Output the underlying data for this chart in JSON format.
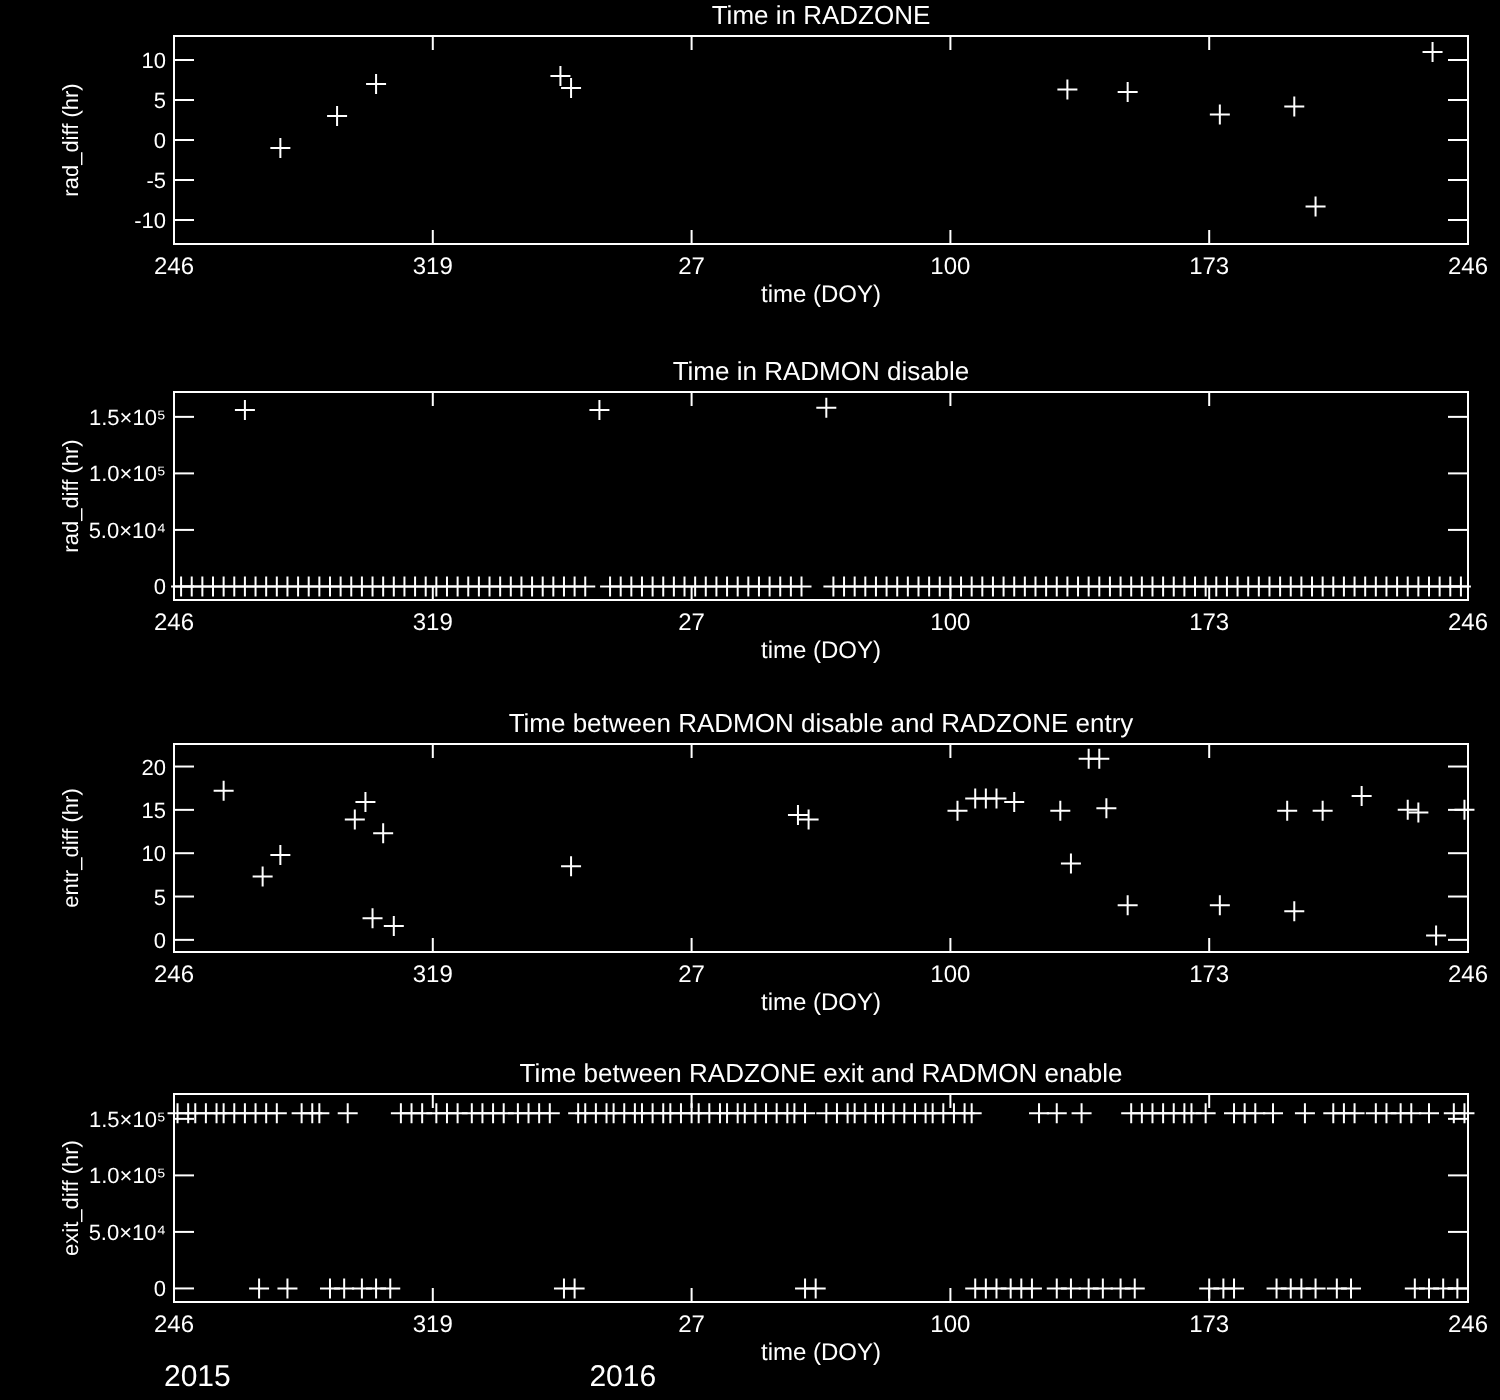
{
  "chart_data": [
    {
      "type": "scatter",
      "title": "Time in RADZONE",
      "xlabel": "time (DOY)",
      "ylabel": "rad_diff (hr)",
      "color": "#ffffff",
      "marker": "cross",
      "x": [
        "2015-10-03",
        "2015-10-19",
        "2015-10-30",
        "2015-12-21",
        "2015-12-24",
        "2016-05-12",
        "2016-05-29",
        "2016-06-24",
        "2016-07-15",
        "2016-07-21",
        "2016-08-23"
      ],
      "values": [
        -1,
        3,
        7,
        8,
        6.5,
        6.3,
        6,
        3.2,
        4.2,
        -8.3,
        11
      ],
      "xlim": [
        "2015-09-03",
        "2016-09-02"
      ],
      "xticks": [
        {
          "value": "2015-09-03",
          "label": "246"
        },
        {
          "value": "2015-11-15",
          "label": "319"
        },
        {
          "value": "2016-01-27",
          "label": "27"
        },
        {
          "value": "2016-04-09",
          "label": "100"
        },
        {
          "value": "2016-06-21",
          "label": "173"
        },
        {
          "value": "2016-09-02",
          "label": "246"
        }
      ],
      "ylim": [
        -13,
        13
      ],
      "yticks": [
        -10,
        -5,
        0,
        5,
        10
      ]
    },
    {
      "type": "scatter",
      "title": "Time in RADMON disable",
      "xlabel": "time (DOY)",
      "ylabel": "rad_diff (hr)",
      "color": "#ffffff",
      "marker": "cross",
      "x": [
        "2015-09-23",
        "2016-01-01",
        "2016-03-05",
        "2015-09-05",
        "2015-09-08",
        "2015-09-11",
        "2015-09-14",
        "2015-09-17",
        "2015-09-20",
        "2015-09-23",
        "2015-09-26",
        "2015-09-29",
        "2015-10-02",
        "2015-10-05",
        "2015-10-08",
        "2015-10-11",
        "2015-10-14",
        "2015-10-17",
        "2015-10-20",
        "2015-10-23",
        "2015-10-26",
        "2015-10-29",
        "2015-11-01",
        "2015-11-04",
        "2015-11-07",
        "2015-11-10",
        "2015-11-13",
        "2015-11-16",
        "2015-11-19",
        "2015-11-22",
        "2015-11-25",
        "2015-11-28",
        "2015-12-01",
        "2015-12-04",
        "2015-12-07",
        "2015-12-10",
        "2015-12-13",
        "2015-12-16",
        "2015-12-19",
        "2015-12-22",
        "2015-12-25",
        "2015-12-28",
        "2016-01-04",
        "2016-01-07",
        "2016-01-10",
        "2016-01-13",
        "2016-01-16",
        "2016-01-19",
        "2016-01-22",
        "2016-01-25",
        "2016-01-28",
        "2016-01-31",
        "2016-02-03",
        "2016-02-06",
        "2016-02-09",
        "2016-02-12",
        "2016-02-15",
        "2016-02-18",
        "2016-02-21",
        "2016-02-24",
        "2016-02-27",
        "2016-03-07",
        "2016-03-10",
        "2016-03-13",
        "2016-03-16",
        "2016-03-19",
        "2016-03-22",
        "2016-03-25",
        "2016-03-28",
        "2016-03-31",
        "2016-04-03",
        "2016-04-06",
        "2016-04-09",
        "2016-04-12",
        "2016-04-15",
        "2016-04-18",
        "2016-04-21",
        "2016-04-24",
        "2016-04-27",
        "2016-04-30",
        "2016-05-03",
        "2016-05-06",
        "2016-05-09",
        "2016-05-12",
        "2016-05-15",
        "2016-05-18",
        "2016-05-21",
        "2016-05-24",
        "2016-05-27",
        "2016-05-30",
        "2016-06-02",
        "2016-06-05",
        "2016-06-08",
        "2016-06-11",
        "2016-06-14",
        "2016-06-17",
        "2016-06-20",
        "2016-06-23",
        "2016-06-26",
        "2016-06-29",
        "2016-07-02",
        "2016-07-05",
        "2016-07-08",
        "2016-07-11",
        "2016-07-14",
        "2016-07-17",
        "2016-07-20",
        "2016-07-23",
        "2016-07-26",
        "2016-07-29",
        "2016-08-01",
        "2016-08-04",
        "2016-08-07",
        "2016-08-10",
        "2016-08-13",
        "2016-08-16",
        "2016-08-19",
        "2016-08-22",
        "2016-08-25",
        "2016-08-28",
        "2016-08-31"
      ],
      "values": [
        156000,
        156000,
        158000,
        0,
        0,
        0,
        0,
        0,
        0,
        0,
        0,
        0,
        0,
        0,
        0,
        0,
        0,
        0,
        0,
        0,
        0,
        0,
        0,
        0,
        0,
        0,
        0,
        0,
        0,
        0,
        0,
        0,
        0,
        0,
        0,
        0,
        0,
        0,
        0,
        0,
        0,
        0,
        0,
        0,
        0,
        0,
        0,
        0,
        0,
        0,
        0,
        0,
        0,
        0,
        0,
        0,
        0,
        0,
        0,
        0,
        0,
        0,
        0,
        0,
        0,
        0,
        0,
        0,
        0,
        0,
        0,
        0,
        0,
        0,
        0,
        0,
        0,
        0,
        0,
        0,
        0,
        0,
        0,
        0,
        0,
        0,
        0,
        0,
        0,
        0,
        0,
        0,
        0,
        0,
        0,
        0,
        0,
        0,
        0,
        0,
        0,
        0,
        0,
        0,
        0,
        0,
        0,
        0,
        0,
        0,
        0,
        0,
        0,
        0,
        0,
        0,
        0,
        0,
        0,
        0,
        0
      ],
      "xlim": [
        "2015-09-03",
        "2016-09-02"
      ],
      "xticks": [
        {
          "value": "2015-09-03",
          "label": "246"
        },
        {
          "value": "2015-11-15",
          "label": "319"
        },
        {
          "value": "2016-01-27",
          "label": "27"
        },
        {
          "value": "2016-04-09",
          "label": "100"
        },
        {
          "value": "2016-06-21",
          "label": "173"
        },
        {
          "value": "2016-09-02",
          "label": "246"
        }
      ],
      "ylim": [
        -12000,
        172000
      ],
      "yticks": [
        0,
        {
          "value": 50000,
          "label": "5.0×10⁴"
        },
        {
          "value": 100000,
          "label": "1.0×10⁵"
        },
        {
          "value": 150000,
          "label": "1.5×10⁵"
        }
      ]
    },
    {
      "type": "scatter",
      "title": "Time between RADMON disable and RADZONE entry",
      "xlabel": "time (DOY)",
      "ylabel": "entr_diff (hr)",
      "color": "#ffffff",
      "marker": "cross",
      "x": [
        "2015-09-17",
        "2015-09-28",
        "2015-10-03",
        "2015-10-24",
        "2015-10-27",
        "2015-10-29",
        "2015-11-01",
        "2015-11-04",
        "2015-12-24",
        "2016-02-26",
        "2016-02-29",
        "2016-04-11",
        "2016-04-16",
        "2016-04-19",
        "2016-04-22",
        "2016-04-27",
        "2016-05-10",
        "2016-05-13",
        "2016-05-18",
        "2016-05-21",
        "2016-05-23",
        "2016-05-29",
        "2016-06-24",
        "2016-07-13",
        "2016-07-15",
        "2016-07-23",
        "2016-08-03",
        "2016-08-16",
        "2016-08-19",
        "2016-08-24",
        "2016-09-01"
      ],
      "values": [
        17.2,
        7.3,
        9.8,
        13.9,
        15.9,
        2.5,
        12.3,
        1.6,
        8.5,
        14.4,
        13.9,
        14.9,
        16.3,
        16.3,
        16.3,
        15.9,
        14.9,
        8.8,
        20.9,
        20.9,
        15.2,
        4,
        4,
        14.9,
        3.3,
        14.9,
        16.6,
        15,
        14.7,
        0.5,
        15
      ],
      "xlim": [
        "2015-09-03",
        "2016-09-02"
      ],
      "xticks": [
        {
          "value": "2015-09-03",
          "label": "246"
        },
        {
          "value": "2015-11-15",
          "label": "319"
        },
        {
          "value": "2016-01-27",
          "label": "27"
        },
        {
          "value": "2016-04-09",
          "label": "100"
        },
        {
          "value": "2016-06-21",
          "label": "173"
        },
        {
          "value": "2016-09-02",
          "label": "246"
        }
      ],
      "ylim": [
        -1.4,
        22.6
      ],
      "yticks": [
        0,
        5,
        10,
        15,
        20
      ]
    },
    {
      "type": "scatter",
      "title": "Time between RADZONE exit and RADMON enable",
      "xlabel": "time (DOY)",
      "ylabel": "exit_diff (hr)",
      "color": "#ffffff",
      "marker": "cross",
      "x": [
        "2015-09-04",
        "2015-09-07",
        "2015-09-09",
        "2015-09-12",
        "2015-09-15",
        "2015-09-17",
        "2015-09-20",
        "2015-09-23",
        "2015-09-26",
        "2015-09-29",
        "2015-10-02",
        "2015-10-09",
        "2015-10-12",
        "2015-10-14",
        "2015-10-22",
        "2015-11-06",
        "2015-11-09",
        "2015-11-12",
        "2015-11-16",
        "2015-11-19",
        "2015-11-22",
        "2015-11-26",
        "2015-11-29",
        "2015-12-02",
        "2015-12-05",
        "2015-12-09",
        "2015-12-12",
        "2015-12-15",
        "2015-12-18",
        "2015-12-26",
        "2015-12-28",
        "2015-12-31",
        "2016-01-03",
        "2016-01-05",
        "2016-01-08",
        "2016-01-11",
        "2016-01-13",
        "2016-01-16",
        "2016-01-19",
        "2016-01-21",
        "2016-01-24",
        "2016-01-27",
        "2016-01-29",
        "2016-02-01",
        "2016-02-04",
        "2016-02-06",
        "2016-02-09",
        "2016-02-11",
        "2016-02-14",
        "2016-02-17",
        "2016-02-20",
        "2016-02-23",
        "2016-02-25",
        "2016-02-28",
        "2016-03-05",
        "2016-03-08",
        "2016-03-11",
        "2016-03-13",
        "2016-03-16",
        "2016-03-19",
        "2016-03-21",
        "2016-03-24",
        "2016-03-27",
        "2016-03-30",
        "2016-04-02",
        "2016-04-04",
        "2016-04-07",
        "2016-04-10",
        "2016-04-13",
        "2016-04-15",
        "2016-05-04",
        "2016-05-09",
        "2016-05-16",
        "2016-05-30",
        "2016-06-02",
        "2016-06-05",
        "2016-06-08",
        "2016-06-11",
        "2016-06-14",
        "2016-06-16",
        "2016-06-20",
        "2016-06-28",
        "2016-07-01",
        "2016-07-04",
        "2016-07-09",
        "2016-07-18",
        "2016-07-26",
        "2016-07-29",
        "2016-08-01",
        "2016-08-07",
        "2016-08-10",
        "2016-08-14",
        "2016-08-17",
        "2016-08-22",
        "2016-08-29",
        "2016-09-01",
        "2015-09-27",
        "2015-10-05",
        "2015-10-17",
        "2015-10-21",
        "2015-10-26",
        "2015-10-30",
        "2015-11-03",
        "2015-12-22",
        "2015-12-25",
        "2016-02-28",
        "2016-03-02",
        "2016-04-16",
        "2016-04-19",
        "2016-04-22",
        "2016-04-26",
        "2016-04-29",
        "2016-05-02",
        "2016-05-09",
        "2016-05-13",
        "2016-05-18",
        "2016-05-22",
        "2016-05-27",
        "2016-05-31",
        "2016-06-21",
        "2016-06-25",
        "2016-06-28",
        "2016-07-10",
        "2016-07-14",
        "2016-07-17",
        "2016-07-21",
        "2016-07-27",
        "2016-07-31",
        "2016-08-18",
        "2016-08-22",
        "2016-08-26",
        "2016-08-30"
      ],
      "values": [
        155000,
        155000,
        155000,
        155000,
        155000,
        155000,
        155000,
        155000,
        155000,
        155000,
        155000,
        155000,
        155000,
        155000,
        155000,
        155000,
        155000,
        155000,
        155000,
        155000,
        155000,
        155000,
        155000,
        155000,
        155000,
        155000,
        155000,
        155000,
        155000,
        155000,
        155000,
        155000,
        155000,
        155000,
        155000,
        155000,
        155000,
        155000,
        155000,
        155000,
        155000,
        155000,
        155000,
        155000,
        155000,
        155000,
        155000,
        155000,
        155000,
        155000,
        155000,
        155000,
        155000,
        155000,
        155000,
        155000,
        155000,
        155000,
        155000,
        155000,
        155000,
        155000,
        155000,
        155000,
        155000,
        155000,
        155000,
        155000,
        155000,
        155000,
        155000,
        155000,
        155000,
        155000,
        155000,
        155000,
        155000,
        155000,
        155000,
        155000,
        155000,
        155000,
        155000,
        155000,
        155000,
        155000,
        155000,
        155000,
        155000,
        155000,
        155000,
        155000,
        155000,
        155000,
        155000,
        155000,
        0,
        0,
        0,
        0,
        0,
        0,
        0,
        0,
        0,
        0,
        0,
        0,
        0,
        0,
        0,
        0,
        0,
        0,
        0,
        0,
        0,
        0,
        0,
        0,
        0,
        0,
        0,
        0,
        0,
        0,
        0,
        0,
        0,
        0,
        0,
        0
      ],
      "xlim": [
        "2015-09-03",
        "2016-09-02"
      ],
      "xticks": [
        {
          "value": "2015-09-03",
          "label": "246"
        },
        {
          "value": "2015-11-15",
          "label": "319"
        },
        {
          "value": "2016-01-27",
          "label": "27"
        },
        {
          "value": "2016-04-09",
          "label": "100"
        },
        {
          "value": "2016-06-21",
          "label": "173"
        },
        {
          "value": "2016-09-02",
          "label": "246"
        }
      ],
      "ylim": [
        -12000,
        172000
      ],
      "yticks": [
        0,
        {
          "value": 50000,
          "label": "5.0×10⁴"
        },
        {
          "value": 100000,
          "label": "1.0×10⁵"
        },
        {
          "value": 150000,
          "label": "1.5×10⁵"
        }
      ],
      "annotations": [
        "2015",
        "2016"
      ]
    }
  ]
}
